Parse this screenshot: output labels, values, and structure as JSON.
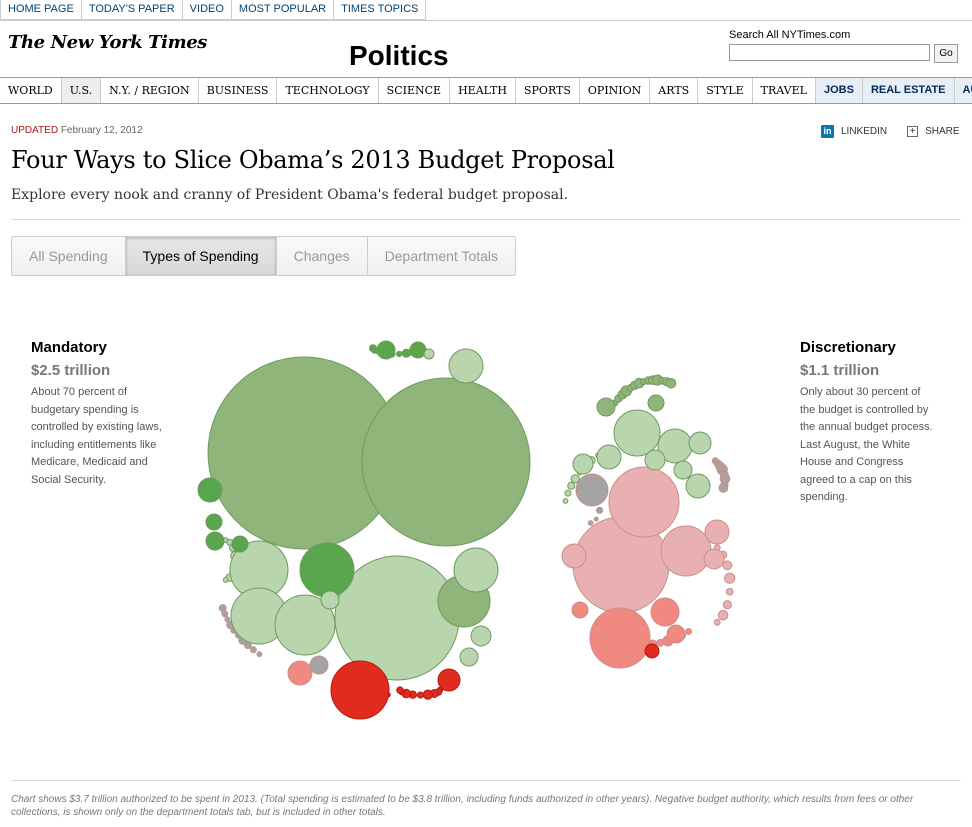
{
  "top_links": [
    "HOME PAGE",
    "TODAY'S PAPER",
    "VIDEO",
    "MOST POPULAR",
    "TIMES TOPICS"
  ],
  "masthead": {
    "logo_text": "The New York Times",
    "section": "Politics",
    "search_label": "Search All NYTimes.com",
    "search_value": "",
    "search_button": "Go"
  },
  "nav": {
    "items": [
      "WORLD",
      "U.S.",
      "N.Y. / REGION",
      "BUSINESS",
      "TECHNOLOGY",
      "SCIENCE",
      "HEALTH",
      "SPORTS",
      "OPINION",
      "ARTS",
      "STYLE",
      "TRAVEL"
    ],
    "bold_items": [
      "JOBS",
      "REAL ESTATE",
      "AUTOS"
    ]
  },
  "article": {
    "updated_label": "UPDATED",
    "updated_date": "February 12, 2012",
    "linkedin_label": "LINKEDIN",
    "share_label": "SHARE",
    "headline": "Four Ways to Slice Obama’s 2013 Budget Proposal",
    "deck": "Explore every nook and cranny of President Obama's federal budget proposal."
  },
  "tabs": [
    {
      "label": "All Spending",
      "active": false
    },
    {
      "label": "Types of Spending",
      "active": true
    },
    {
      "label": "Changes",
      "active": false
    },
    {
      "label": "Department Totals",
      "active": false
    }
  ],
  "mandatory": {
    "label": "Mandatory",
    "amount": "$2.5 trillion",
    "description": "About 70 percent of budgetary spending is controlled by existing laws, including entitlements like Medicare, Medicaid and Social Security."
  },
  "discretionary": {
    "label": "Discretionary",
    "amount": "$1.1 trillion",
    "description": "Only about 30 percent of the budget is controlled by the annual budget process. Last August, the White House and Congress agreed to a cap on this spending."
  },
  "colors": {
    "dark_green": "#5aa64c",
    "mid_green": "#8fb57a",
    "light_green": "#b9d5ae",
    "gray": "#a4a4a4",
    "light_red": "#e8b0b0",
    "mid_red": "#f08a80",
    "dark_red": "#e02b1e"
  },
  "footnote": "Chart shows $3.7 trillion authorized to be spent in 2013. (Total spending is estimated to be $3.8 trillion, including funds authorized in other years). Negative budget authority, which results from fees or other collections, is shown only on the department totals tab, but is included in other totals."
}
